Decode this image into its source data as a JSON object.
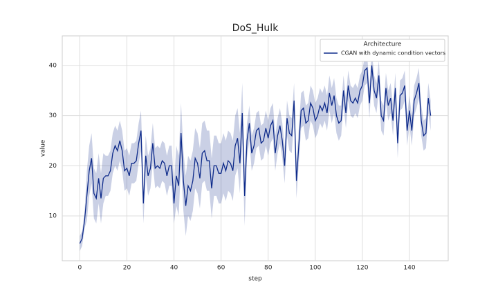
{
  "chart_data": {
    "type": "line",
    "title": "DoS_Hulk",
    "x_label": "step",
    "y_label": "value",
    "legend_title": "Architecture",
    "legend_position": "upper right",
    "grid": true,
    "xlim": [
      -7.45,
      156.45
    ],
    "ylim": [
      1.06,
      45.9
    ],
    "xticks": [
      0,
      20,
      40,
      60,
      80,
      100,
      120,
      140
    ],
    "yticks": [
      10,
      20,
      30,
      40
    ],
    "x": [
      0,
      1,
      2,
      3,
      4,
      5,
      6,
      7,
      8,
      9,
      10,
      11,
      12,
      13,
      14,
      15,
      16,
      17,
      18,
      19,
      20,
      21,
      22,
      23,
      24,
      25,
      26,
      27,
      28,
      29,
      30,
      31,
      32,
      33,
      34,
      35,
      36,
      37,
      38,
      39,
      40,
      41,
      42,
      43,
      44,
      45,
      46,
      47,
      48,
      49,
      50,
      51,
      52,
      53,
      54,
      55,
      56,
      57,
      58,
      59,
      60,
      61,
      62,
      63,
      64,
      65,
      66,
      67,
      68,
      69,
      70,
      71,
      72,
      73,
      74,
      75,
      76,
      77,
      78,
      79,
      80,
      81,
      82,
      83,
      84,
      85,
      86,
      87,
      88,
      89,
      90,
      91,
      92,
      93,
      94,
      95,
      96,
      97,
      98,
      99,
      100,
      101,
      102,
      103,
      104,
      105,
      106,
      107,
      108,
      109,
      110,
      111,
      112,
      113,
      114,
      115,
      116,
      117,
      118,
      119,
      120,
      121,
      122,
      123,
      124,
      125,
      126,
      127,
      128,
      129,
      130,
      131,
      132,
      133,
      134,
      135,
      136,
      137,
      138,
      139,
      140,
      141,
      142,
      143,
      144,
      145,
      146,
      147,
      148,
      149
    ],
    "series": [
      {
        "name": "CGAN with dynamic condition vectors",
        "color": "#0d2a8a",
        "values": [
          4.5,
          5.5,
          9,
          14,
          19,
          21.5,
          14.5,
          13.5,
          17.5,
          13.5,
          17.5,
          18,
          18,
          19,
          22.5,
          24,
          23,
          25,
          23,
          19,
          19.5,
          18,
          20.5,
          20.5,
          21,
          24.5,
          27,
          12.5,
          22,
          18,
          19.5,
          24.5,
          19.5,
          20,
          19.5,
          21,
          20.5,
          18,
          20,
          20,
          12.5,
          18,
          16,
          26.5,
          17,
          12,
          16,
          15,
          17,
          21.5,
          20.5,
          17.5,
          22.5,
          23,
          21,
          21,
          15.5,
          20,
          20,
          18.5,
          18.5,
          20.5,
          19,
          21,
          20.5,
          19,
          24,
          25.5,
          20.5,
          30.5,
          14,
          25,
          28.5,
          22.5,
          24,
          27,
          27.5,
          24.5,
          25,
          27.5,
          25.5,
          28,
          29,
          22.5,
          26,
          28,
          25,
          20,
          29.5,
          26.5,
          26,
          33,
          17,
          24,
          31,
          31.5,
          28.5,
          29,
          32.5,
          31.5,
          29,
          30,
          32,
          31,
          32.5,
          30.5,
          34.5,
          32,
          34,
          30,
          28.5,
          29,
          35,
          30.5,
          36,
          33,
          32.5,
          33.5,
          32.5,
          35,
          36,
          39,
          39.5,
          32.5,
          40,
          35,
          33.5,
          38,
          30,
          29,
          35.5,
          32,
          33.5,
          29,
          35.5,
          24.5,
          34,
          34.5,
          36,
          27,
          31,
          27,
          33,
          34.5,
          36.5,
          29,
          26,
          26.5,
          33.5,
          30
        ],
        "ci_lower": [
          3,
          4,
          7.5,
          9,
          14,
          16.5,
          9.5,
          8.5,
          12.5,
          8.5,
          12.5,
          14,
          14,
          15,
          18.5,
          20,
          19,
          21,
          19,
          15,
          15.5,
          14,
          16.5,
          16.5,
          17,
          20.5,
          23,
          8.5,
          18,
          14,
          15.5,
          20.5,
          15.5,
          16,
          15.5,
          17,
          16.5,
          14,
          16,
          16,
          8.5,
          12,
          10,
          20.5,
          11,
          6,
          10,
          9,
          11,
          15.5,
          14.5,
          11.5,
          16.5,
          17,
          15,
          15,
          9.5,
          14,
          14,
          12.5,
          12.5,
          14.5,
          13,
          15,
          14.5,
          13,
          18,
          19.5,
          14.5,
          24.5,
          8,
          21.5,
          25,
          19,
          20.5,
          23.5,
          24,
          21,
          21.5,
          24,
          22,
          24.5,
          25.5,
          19,
          22.5,
          24.5,
          21.5,
          16.5,
          26,
          23,
          22.5,
          29.5,
          13.5,
          20.5,
          27.5,
          28,
          25,
          25.5,
          29,
          28,
          25.5,
          26.5,
          28.5,
          27.5,
          29,
          27,
          31,
          28.5,
          30.5,
          26.5,
          25,
          26,
          32,
          27.5,
          33,
          30,
          29.5,
          30.5,
          29.5,
          32,
          33,
          36,
          36.5,
          29.5,
          37,
          32,
          30.5,
          35,
          27,
          26,
          32.5,
          29,
          30.5,
          26,
          32.5,
          21.5,
          31,
          31.5,
          33,
          24,
          28,
          24,
          30,
          31.5,
          33.5,
          26,
          23,
          23.5,
          30.5,
          27
        ],
        "ci_upper": [
          6,
          7,
          10.5,
          19,
          24,
          26.5,
          19.5,
          18.5,
          22.5,
          18.5,
          22.5,
          22,
          22,
          23,
          26.5,
          28,
          27,
          29,
          27,
          23,
          23.5,
          22,
          24.5,
          24.5,
          25,
          28.5,
          31,
          16.5,
          26,
          22,
          23.5,
          28.5,
          23.5,
          24,
          23.5,
          25,
          24.5,
          22,
          24,
          24,
          16.5,
          24,
          22,
          32.5,
          23,
          18,
          22,
          21,
          23,
          27.5,
          26.5,
          23.5,
          28.5,
          29,
          27,
          27,
          21.5,
          26,
          26,
          24.5,
          24.5,
          26.5,
          25,
          27,
          26.5,
          25,
          30,
          31.5,
          26.5,
          36.5,
          20,
          28.5,
          32,
          26,
          27.5,
          30.5,
          31,
          28,
          28.5,
          31,
          29,
          31.5,
          32.5,
          26,
          29.5,
          31.5,
          28.5,
          23.5,
          33,
          30,
          29.5,
          36.5,
          20.5,
          27.5,
          34.5,
          35,
          32,
          32.5,
          36,
          35,
          32.5,
          33.5,
          35.5,
          34.5,
          36,
          34,
          38,
          35.5,
          37.5,
          33.5,
          32,
          32,
          38,
          33.5,
          39,
          36,
          35.5,
          36.5,
          35.5,
          38,
          39,
          42,
          42.5,
          35.5,
          43,
          38,
          36.5,
          41,
          33,
          32,
          38.5,
          35,
          36.5,
          32,
          38.5,
          27.5,
          37,
          37.5,
          39,
          30,
          34,
          30,
          36,
          37.5,
          39.5,
          32,
          29,
          29.5,
          36.5,
          33
        ]
      }
    ]
  }
}
